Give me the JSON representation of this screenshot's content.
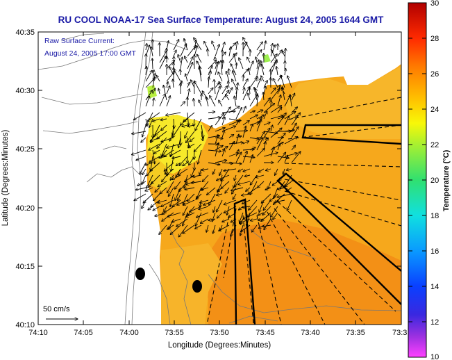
{
  "map": {
    "title": "RU COOL  NOAA-17  Sea Surface Temperature:  August 24, 2005 1644 GMT",
    "annotation_line1": "Raw Surface Current:",
    "annotation_line2": "August 24, 2005 17:00 GMT",
    "x_axis_label": "Longitude (Degrees:Minutes)",
    "y_axis_label": "Latitude (Degrees:Minutes)",
    "x_ticks": [
      "74:10",
      "74:05",
      "74:00",
      "73:55",
      "73:50",
      "73:45",
      "73:40",
      "73:35",
      "73:3"
    ],
    "y_ticks": [
      "40:35",
      "40:30",
      "40:25",
      "40:20",
      "40:15",
      "40:10"
    ],
    "scale_label": "50 cm/s"
  },
  "colorbar": {
    "label": "Temperature (°C)",
    "ticks": [
      "30",
      "28",
      "26",
      "24",
      "22",
      "20",
      "18",
      "16",
      "14",
      "12",
      "10"
    ],
    "min": 10,
    "max": 30
  }
}
